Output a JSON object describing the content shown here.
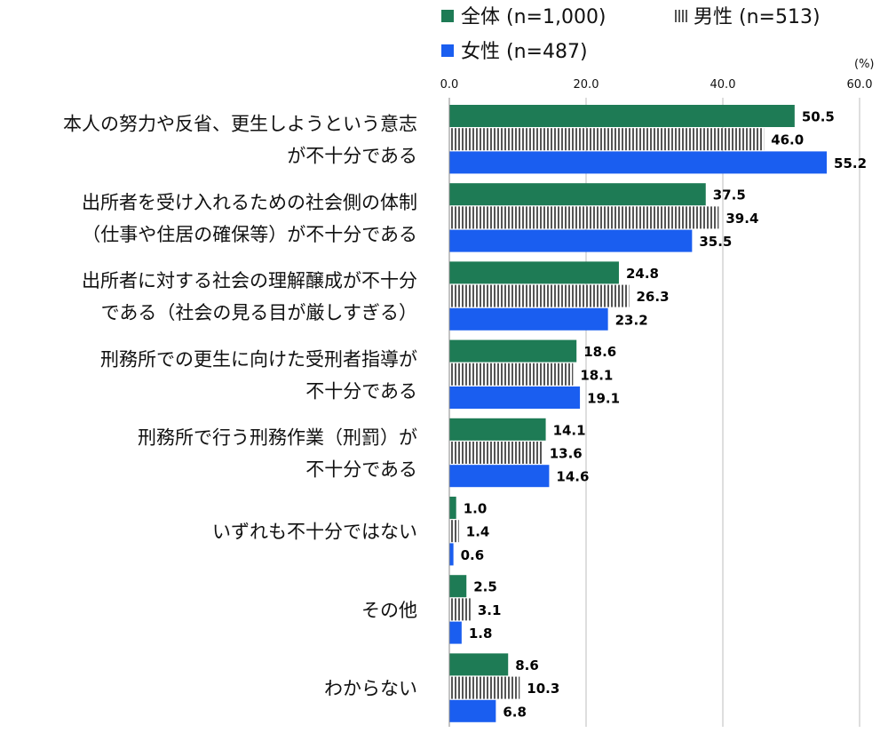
{
  "chart_data": {
    "type": "bar",
    "orientation": "horizontal",
    "unit_label": "(%)",
    "xlim": [
      0,
      60
    ],
    "ticks": [
      "0.0",
      "20.0",
      "40.0",
      "60.0"
    ],
    "tick_values": [
      0,
      20,
      40,
      60
    ],
    "grid": true,
    "legend_position": "top",
    "categories": [
      [
        "本人の努力や反省、更生しようという意志",
        "が不十分である"
      ],
      [
        "出所者を受け入れるための社会側の体制",
        "（仕事や住居の確保等）が不十分である"
      ],
      [
        "出所者に対する社会の理解醸成が不十分",
        "である（社会の見る目が厳しすぎる）"
      ],
      [
        "刑務所での更生に向けた受刑者指導が",
        "不十分である"
      ],
      [
        "刑務所で行う刑務作業（刑罰）が",
        "不十分である"
      ],
      [
        "いずれも不十分ではない"
      ],
      [
        "その他"
      ],
      [
        "わからない"
      ]
    ],
    "series": [
      {
        "name": "全体 (n=1,000)",
        "color": "#1e7b55",
        "pattern": "solid",
        "values": [
          50.5,
          37.5,
          24.8,
          18.6,
          14.1,
          1.0,
          2.5,
          8.6
        ],
        "labels": [
          "50.5",
          "37.5",
          "24.8",
          "18.6",
          "14.1",
          "1.0",
          "2.5",
          "8.6"
        ]
      },
      {
        "name": "男性 (n=513)",
        "color": "#555555",
        "pattern": "vertical-stripes",
        "values": [
          46.0,
          39.4,
          26.3,
          18.1,
          13.6,
          1.4,
          3.1,
          10.3
        ],
        "labels": [
          "46.0",
          "39.4",
          "26.3",
          "18.1",
          "13.6",
          "1.4",
          "3.1",
          "10.3"
        ]
      },
      {
        "name": "女性 (n=487)",
        "color": "#1a5ef0",
        "pattern": "solid",
        "values": [
          55.2,
          35.5,
          23.2,
          19.1,
          14.6,
          0.6,
          1.8,
          6.8
        ],
        "labels": [
          "55.2",
          "35.5",
          "23.2",
          "19.1",
          "14.6",
          "0.6",
          "1.8",
          "6.8"
        ]
      }
    ]
  }
}
